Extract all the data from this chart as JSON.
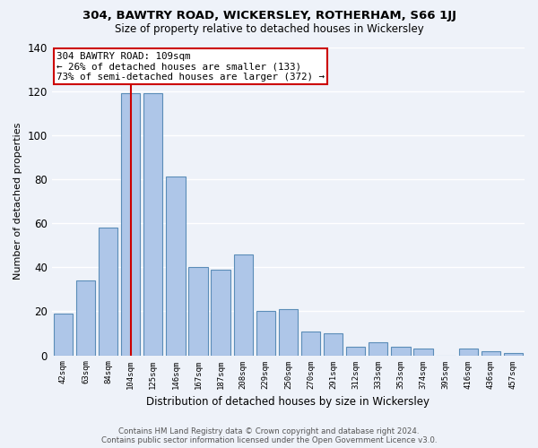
{
  "title": "304, BAWTRY ROAD, WICKERSLEY, ROTHERHAM, S66 1JJ",
  "subtitle": "Size of property relative to detached houses in Wickersley",
  "xlabel": "Distribution of detached houses by size in Wickersley",
  "ylabel": "Number of detached properties",
  "categories": [
    "42sqm",
    "63sqm",
    "84sqm",
    "104sqm",
    "125sqm",
    "146sqm",
    "167sqm",
    "187sqm",
    "208sqm",
    "229sqm",
    "250sqm",
    "270sqm",
    "291sqm",
    "312sqm",
    "333sqm",
    "353sqm",
    "374sqm",
    "395sqm",
    "416sqm",
    "436sqm",
    "457sqm"
  ],
  "values": [
    19,
    34,
    58,
    119,
    119,
    81,
    40,
    39,
    46,
    20,
    21,
    11,
    10,
    4,
    6,
    4,
    3,
    0,
    3,
    2,
    1
  ],
  "bar_color": "#aec6e8",
  "bar_edge_color": "#5b8db8",
  "vline_x_index": 3,
  "vline_color": "#cc0000",
  "annotation_title": "304 BAWTRY ROAD: 109sqm",
  "annotation_line1": "← 26% of detached houses are smaller (133)",
  "annotation_line2": "73% of semi-detached houses are larger (372) →",
  "annotation_box_color": "#ffffff",
  "annotation_box_edge_color": "#cc0000",
  "ylim": [
    0,
    140
  ],
  "yticks": [
    0,
    20,
    40,
    60,
    80,
    100,
    120,
    140
  ],
  "background_color": "#eef2f9",
  "grid_color": "#ffffff",
  "footer1": "Contains HM Land Registry data © Crown copyright and database right 2024.",
  "footer2": "Contains public sector information licensed under the Open Government Licence v3.0."
}
